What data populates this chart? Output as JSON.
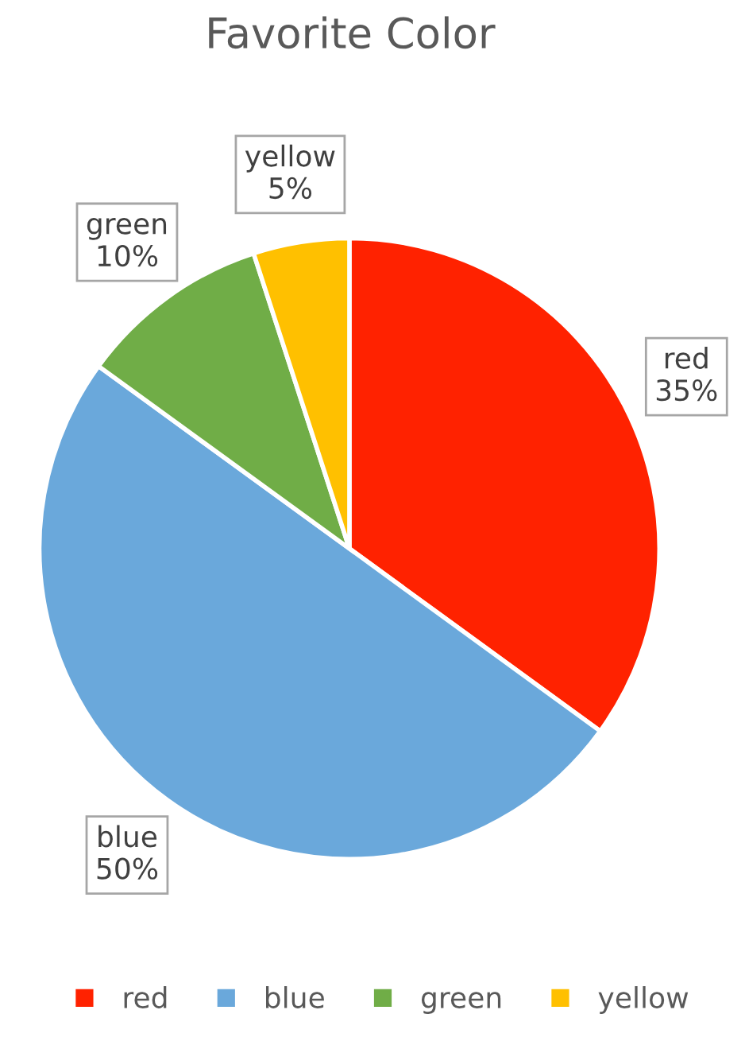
{
  "chart_data": {
    "type": "pie",
    "title": "Favorite Color",
    "categories": [
      "red",
      "blue",
      "green",
      "yellow"
    ],
    "values": [
      35,
      50,
      10,
      5
    ],
    "value_labels": [
      "35%",
      "50%",
      "10%",
      "5%"
    ],
    "colors": [
      "#ff2200",
      "#6aa8db",
      "#70ad47",
      "#ffc000"
    ],
    "legend": "bottom"
  }
}
